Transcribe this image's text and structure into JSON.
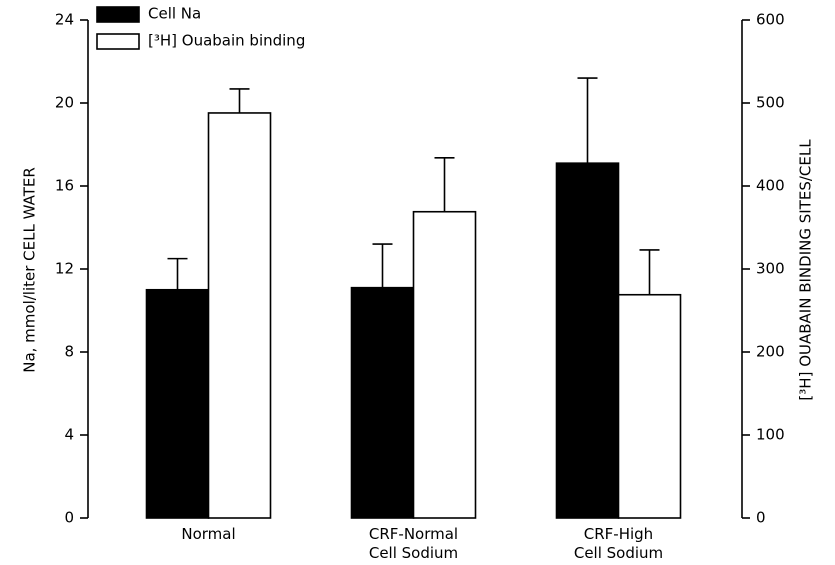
{
  "chart_data": {
    "type": "bar",
    "categories": [
      "Normal",
      "CRF-Normal\nCell Sodium",
      "CRF-High\nCell Sodium"
    ],
    "y_label": "Na, mmol/liter CELL WATER",
    "y2_label": "[³H] OUABAIN BINDING SITES/CELL",
    "ylim": [
      0,
      24
    ],
    "yticks": [
      0,
      4,
      8,
      12,
      16,
      20,
      24
    ],
    "y2lim": [
      0,
      600
    ],
    "y2ticks": [
      0,
      100,
      200,
      300,
      400,
      500,
      600
    ],
    "series": [
      {
        "name": "Cell Na",
        "color": "#000000",
        "axis": "y",
        "values": [
          11.0,
          11.1,
          17.1
        ],
        "errors": [
          1.5,
          2.1,
          4.1
        ]
      },
      {
        "name": "[³H] Ouabain binding",
        "color": "#ffffff",
        "axis": "y2",
        "values": [
          488,
          369,
          269
        ],
        "errors": [
          29,
          65,
          54
        ]
      }
    ],
    "legend": "upper-left"
  }
}
